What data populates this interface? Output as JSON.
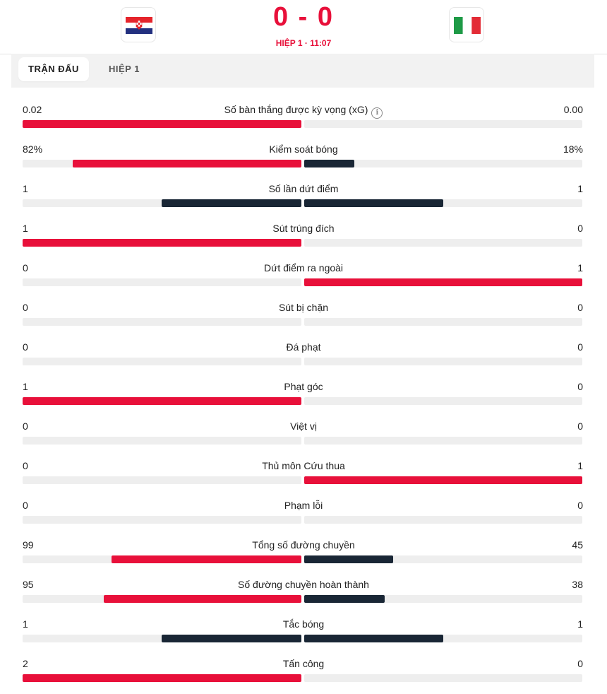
{
  "match": {
    "home_score": "0",
    "separator": "-",
    "away_score": "0",
    "status": "HIỆP 1 · 11:07"
  },
  "tabs": [
    {
      "label": "TRẬN ĐẤU",
      "active": true
    },
    {
      "label": "HIỆP 1",
      "active": false
    }
  ],
  "colors": {
    "accent": "#e8103a",
    "dark": "#192635",
    "track": "#eeeeee"
  },
  "stats": [
    {
      "label": "Số bàn thắng được kỳ vọng (xG)",
      "home": "0.02",
      "away": "0.00",
      "home_frac": 1.0,
      "away_frac": 0.0,
      "home_color": "red",
      "away_color": "red",
      "info": true
    },
    {
      "label": "Kiểm soát bóng",
      "home": "82%",
      "away": "18%",
      "home_frac": 0.82,
      "away_frac": 0.18,
      "home_color": "red",
      "away_color": "dark"
    },
    {
      "label": "Số lần dứt điểm",
      "home": "1",
      "away": "1",
      "home_frac": 0.5,
      "away_frac": 0.5,
      "home_color": "dark",
      "away_color": "dark"
    },
    {
      "label": "Sút trúng đích",
      "home": "1",
      "away": "0",
      "home_frac": 1.0,
      "away_frac": 0.0,
      "home_color": "red",
      "away_color": "red"
    },
    {
      "label": "Dứt điểm ra ngoài",
      "home": "0",
      "away": "1",
      "home_frac": 0.0,
      "away_frac": 1.0,
      "home_color": "red",
      "away_color": "red"
    },
    {
      "label": "Sút bị chặn",
      "home": "0",
      "away": "0",
      "home_frac": 0.0,
      "away_frac": 0.0,
      "home_color": "red",
      "away_color": "red"
    },
    {
      "label": "Đá phạt",
      "home": "0",
      "away": "0",
      "home_frac": 0.0,
      "away_frac": 0.0,
      "home_color": "red",
      "away_color": "red"
    },
    {
      "label": "Phạt góc",
      "home": "1",
      "away": "0",
      "home_frac": 1.0,
      "away_frac": 0.0,
      "home_color": "red",
      "away_color": "red"
    },
    {
      "label": "Việt vị",
      "home": "0",
      "away": "0",
      "home_frac": 0.0,
      "away_frac": 0.0,
      "home_color": "red",
      "away_color": "red"
    },
    {
      "label": "Thủ môn Cứu thua",
      "home": "0",
      "away": "1",
      "home_frac": 0.0,
      "away_frac": 1.0,
      "home_color": "red",
      "away_color": "red"
    },
    {
      "label": "Phạm lỗi",
      "home": "0",
      "away": "0",
      "home_frac": 0.0,
      "away_frac": 0.0,
      "home_color": "red",
      "away_color": "red"
    },
    {
      "label": "Tổng số đường chuyền",
      "home": "99",
      "away": "45",
      "home_frac": 0.68,
      "away_frac": 0.32,
      "home_color": "red",
      "away_color": "dark"
    },
    {
      "label": "Số đường chuyền hoàn thành",
      "home": "95",
      "away": "38",
      "home_frac": 0.71,
      "away_frac": 0.29,
      "home_color": "red",
      "away_color": "dark"
    },
    {
      "label": "Tắc bóng",
      "home": "1",
      "away": "1",
      "home_frac": 0.5,
      "away_frac": 0.5,
      "home_color": "dark",
      "away_color": "dark"
    },
    {
      "label": "Tấn công",
      "home": "2",
      "away": "0",
      "home_frac": 1.0,
      "away_frac": 0.0,
      "home_color": "red",
      "away_color": "red"
    }
  ]
}
